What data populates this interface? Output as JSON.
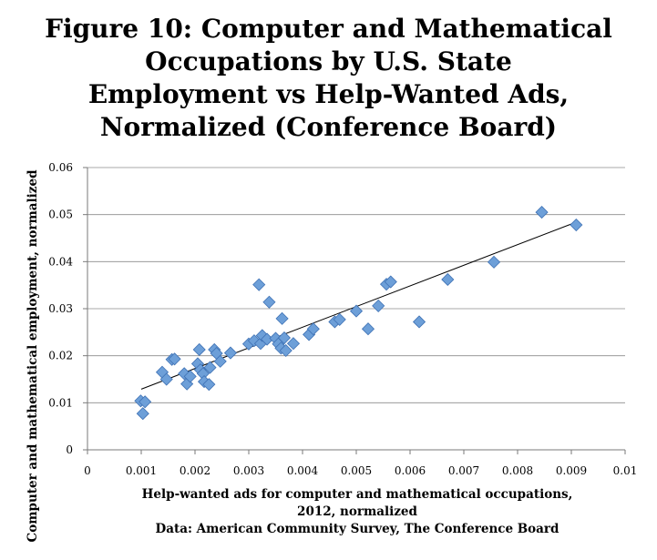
{
  "chart_data": {
    "type": "scatter",
    "title_lines": [
      "Figure 10: Computer and Mathematical",
      "Occupations by U.S. State",
      "Employment vs Help-Wanted Ads,",
      "Normalized (Conference Board)"
    ],
    "xlabel_lines": [
      "Help-wanted ads for computer and mathematical occupations,",
      "2012, normalized"
    ],
    "caption": "Data: American Community Survey, The Conference Board",
    "ylabel": "Computer and mathematical employment, normalized",
    "xlim": [
      0,
      0.01
    ],
    "ylim": [
      0,
      0.06
    ],
    "x_ticks": [
      "0",
      "0.001",
      "0.002",
      "0.003",
      "0.004",
      "0.005",
      "0.006",
      "0.007",
      "0.008",
      "0.009",
      "0.01"
    ],
    "y_ticks": [
      "0",
      "0.01",
      "0.02",
      "0.03",
      "0.04",
      "0.05",
      "0.06"
    ],
    "grid": "horizontal",
    "marker_color": "#6d9fd8",
    "marker_edge_color": "#3f72b5",
    "trendline": {
      "x": [
        0.001,
        0.009
      ],
      "y": [
        0.0129,
        0.048
      ]
    },
    "points": [
      [
        0.00099,
        0.0104
      ],
      [
        0.00107,
        0.0102
      ],
      [
        0.00103,
        0.0077
      ],
      [
        0.00139,
        0.0165
      ],
      [
        0.00147,
        0.015
      ],
      [
        0.00157,
        0.0192
      ],
      [
        0.00162,
        0.0193
      ],
      [
        0.0018,
        0.0162
      ],
      [
        0.00185,
        0.014
      ],
      [
        0.00191,
        0.0156
      ],
      [
        0.00205,
        0.0183
      ],
      [
        0.00208,
        0.0213
      ],
      [
        0.0021,
        0.017
      ],
      [
        0.00215,
        0.0162
      ],
      [
        0.00217,
        0.0145
      ],
      [
        0.00226,
        0.0139
      ],
      [
        0.00228,
        0.0175
      ],
      [
        0.00236,
        0.0213
      ],
      [
        0.0024,
        0.0205
      ],
      [
        0.00247,
        0.0188
      ],
      [
        0.00266,
        0.0206
      ],
      [
        0.003,
        0.0225
      ],
      [
        0.0031,
        0.0232
      ],
      [
        0.00319,
        0.0351
      ],
      [
        0.00322,
        0.0226
      ],
      [
        0.00325,
        0.0243
      ],
      [
        0.00334,
        0.0235
      ],
      [
        0.00338,
        0.0314
      ],
      [
        0.0035,
        0.0237
      ],
      [
        0.00355,
        0.0225
      ],
      [
        0.0036,
        0.0216
      ],
      [
        0.00362,
        0.0279
      ],
      [
        0.00366,
        0.0238
      ],
      [
        0.00369,
        0.0211
      ],
      [
        0.00383,
        0.0226
      ],
      [
        0.00412,
        0.0245
      ],
      [
        0.0042,
        0.0257
      ],
      [
        0.0046,
        0.0272
      ],
      [
        0.00469,
        0.0277
      ],
      [
        0.005,
        0.0295
      ],
      [
        0.00522,
        0.0257
      ],
      [
        0.00541,
        0.0306
      ],
      [
        0.00556,
        0.0352
      ],
      [
        0.00564,
        0.0357
      ],
      [
        0.00617,
        0.0272
      ],
      [
        0.0067,
        0.0362
      ],
      [
        0.00756,
        0.0399
      ],
      [
        0.00845,
        0.0505
      ],
      [
        0.00909,
        0.0478
      ]
    ]
  }
}
